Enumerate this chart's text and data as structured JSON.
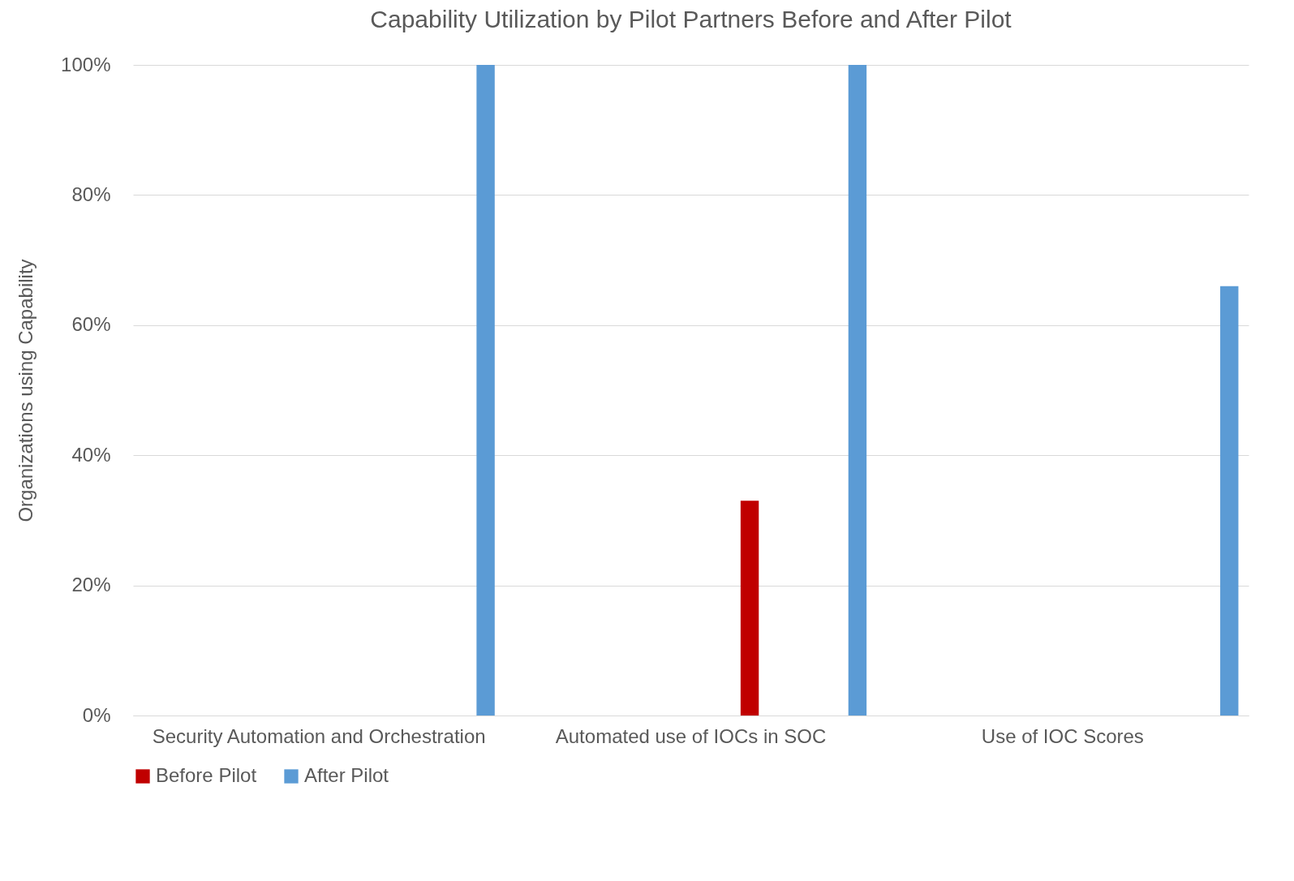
{
  "chart_data": {
    "type": "bar",
    "title": "Capability Utilization by Pilot Partners Before and After Pilot",
    "ylabel": "Organizations using Capability",
    "categories": [
      "Security Automation and Orchestration",
      "Automated use of IOCs in SOC",
      "Use of IOC Scores"
    ],
    "series": [
      {
        "name": "Before Pilot",
        "color": "#c00000",
        "values": [
          0,
          33,
          0
        ]
      },
      {
        "name": "After Pilot",
        "color": "#5b9bd5",
        "values": [
          100,
          100,
          66
        ]
      }
    ],
    "ylim": [
      0,
      100
    ],
    "yticks": [
      {
        "value": 0,
        "label": "0%"
      },
      {
        "value": 20,
        "label": "20%"
      },
      {
        "value": 40,
        "label": "40%"
      },
      {
        "value": 60,
        "label": "60%"
      },
      {
        "value": 80,
        "label": "80%"
      },
      {
        "value": 100,
        "label": "100%"
      }
    ],
    "grid": "y",
    "legend": "bottom"
  }
}
